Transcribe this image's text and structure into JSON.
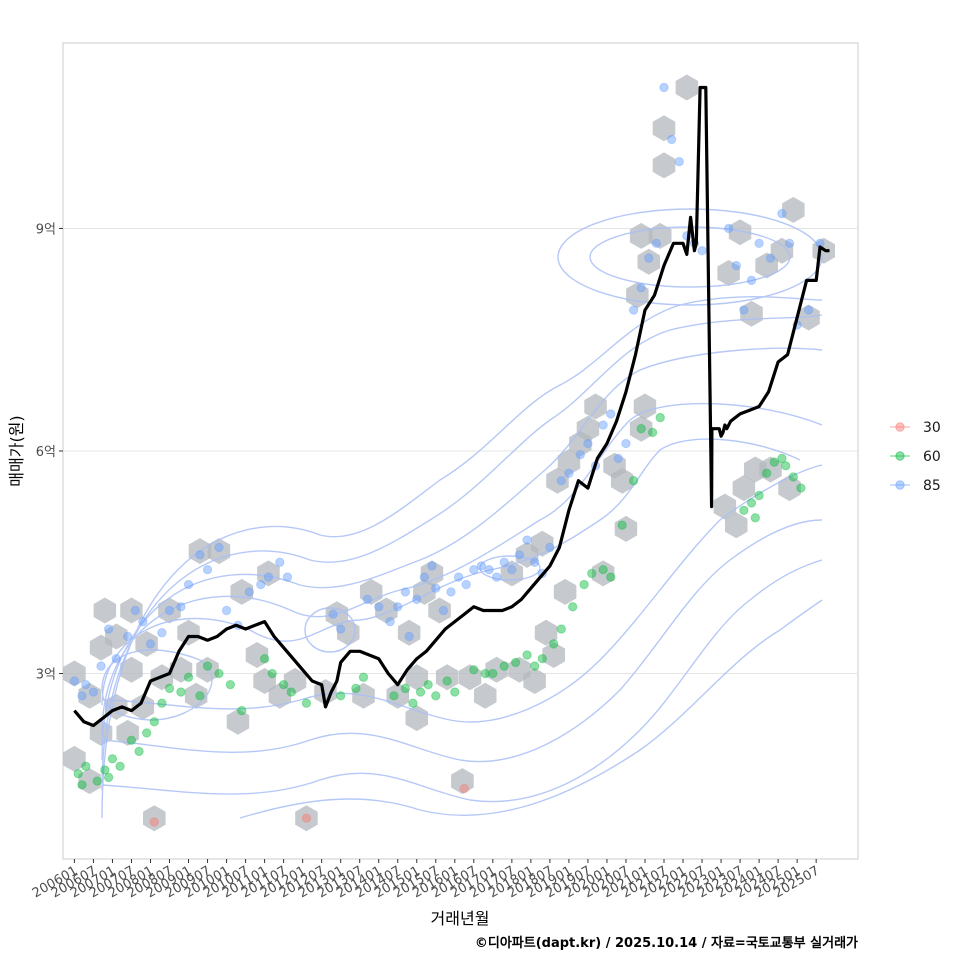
{
  "chart_data": {
    "type": "line",
    "xlabel": "거래년월",
    "ylabel": "매매가(원)",
    "caption": "©디아파트(dapt.kr) / 2025.10.14 / 자료=국토교통부 실거래가",
    "ylim": [
      0.5,
      11.5
    ],
    "y_ticks": [
      {
        "value": 3,
        "label": "3억"
      },
      {
        "value": 6,
        "label": "6억"
      },
      {
        "value": 9,
        "label": "9억"
      }
    ],
    "x_range": [
      2005.7,
      2026.6
    ],
    "x_tick_labels": [
      "200601",
      "200607",
      "200701",
      "200707",
      "200801",
      "200807",
      "200901",
      "200907",
      "201001",
      "201007",
      "201101",
      "201107",
      "201201",
      "201207",
      "201301",
      "201307",
      "201401",
      "201407",
      "201501",
      "201507",
      "201601",
      "201607",
      "201701",
      "201707",
      "201801",
      "201807",
      "201901",
      "201907",
      "202001",
      "202007",
      "202101",
      "202107",
      "202201",
      "202207",
      "202301",
      "202307",
      "202401",
      "202407",
      "202501",
      "202507"
    ],
    "legend": {
      "title": "",
      "position": "right",
      "entries": [
        {
          "name": "30",
          "color": "#F8766D"
        },
        {
          "name": "60",
          "color": "#00BA38"
        },
        {
          "name": "85",
          "color": "#619CFF"
        }
      ]
    },
    "trend_line": {
      "name": "moving average price",
      "x": [
        2006.0,
        2006.25,
        2006.5,
        2006.75,
        2007.0,
        2007.25,
        2007.5,
        2007.75,
        2008.0,
        2008.25,
        2008.5,
        2008.75,
        2009.0,
        2009.25,
        2009.5,
        2009.75,
        2010.0,
        2010.25,
        2010.5,
        2010.75,
        2011.0,
        2011.25,
        2011.5,
        2011.75,
        2012.0,
        2012.25,
        2012.5,
        2012.6,
        2012.75,
        2012.9,
        2013.0,
        2013.25,
        2013.5,
        2013.75,
        2014.0,
        2014.25,
        2014.5,
        2014.75,
        2015.0,
        2015.25,
        2015.5,
        2015.75,
        2016.0,
        2016.25,
        2016.5,
        2016.75,
        2017.0,
        2017.25,
        2017.5,
        2017.75,
        2018.0,
        2018.25,
        2018.5,
        2018.75,
        2019.0,
        2019.25,
        2019.5,
        2019.75,
        2020.0,
        2020.25,
        2020.5,
        2020.75,
        2021.0,
        2021.25,
        2021.5,
        2021.75,
        2022.0,
        2022.1,
        2022.2,
        2022.3,
        2022.35,
        2022.45,
        2022.55,
        2022.6,
        2022.75,
        2022.76,
        2022.95,
        2023.0,
        2023.05,
        2023.1,
        2023.15,
        2023.25,
        2023.5,
        2023.75,
        2024.0,
        2024.25,
        2024.5,
        2024.75,
        2025.0,
        2025.25,
        2025.5,
        2025.6,
        2025.75,
        2025.85
      ],
      "y": [
        2.5,
        2.35,
        2.3,
        2.4,
        2.5,
        2.55,
        2.5,
        2.6,
        2.9,
        2.95,
        3.0,
        3.3,
        3.5,
        3.5,
        3.45,
        3.5,
        3.6,
        3.65,
        3.6,
        3.65,
        3.7,
        3.5,
        3.35,
        3.2,
        3.05,
        2.9,
        2.85,
        2.55,
        2.75,
        2.9,
        3.15,
        3.3,
        3.3,
        3.25,
        3.2,
        3.0,
        2.85,
        3.05,
        3.2,
        3.3,
        3.45,
        3.6,
        3.7,
        3.8,
        3.9,
        3.85,
        3.85,
        3.85,
        3.9,
        4.0,
        4.15,
        4.3,
        4.45,
        4.7,
        5.2,
        5.6,
        5.5,
        5.9,
        6.1,
        6.4,
        6.8,
        7.3,
        7.9,
        8.1,
        8.5,
        8.8,
        8.8,
        8.65,
        9.15,
        8.7,
        8.8,
        10.9,
        10.9,
        10.9,
        5.25,
        6.3,
        6.3,
        6.2,
        6.25,
        6.35,
        6.3,
        6.4,
        6.5,
        6.55,
        6.6,
        6.8,
        7.2,
        7.3,
        7.8,
        8.3,
        8.3,
        8.75,
        8.7,
        8.7
      ]
    },
    "series": [
      {
        "name": "30",
        "color": "#F8766D",
        "points": [
          [
            2008.1,
            1.0
          ],
          [
            2012.1,
            1.05
          ],
          [
            2016.25,
            1.45
          ]
        ]
      },
      {
        "name": "60",
        "color": "#00BA38",
        "points": [
          [
            2006.1,
            1.65
          ],
          [
            2006.2,
            1.5
          ],
          [
            2006.3,
            1.75
          ],
          [
            2006.6,
            1.55
          ],
          [
            2006.8,
            1.7
          ],
          [
            2006.9,
            1.6
          ],
          [
            2007.0,
            1.85
          ],
          [
            2007.2,
            1.75
          ],
          [
            2007.5,
            2.1
          ],
          [
            2007.7,
            1.95
          ],
          [
            2007.9,
            2.2
          ],
          [
            2008.1,
            2.35
          ],
          [
            2008.3,
            2.6
          ],
          [
            2008.5,
            2.8
          ],
          [
            2008.8,
            2.75
          ],
          [
            2009.0,
            2.95
          ],
          [
            2009.3,
            2.7
          ],
          [
            2009.5,
            3.1
          ],
          [
            2009.8,
            3.0
          ],
          [
            2010.1,
            2.85
          ],
          [
            2010.4,
            2.5
          ],
          [
            2011.0,
            3.2
          ],
          [
            2011.2,
            3.0
          ],
          [
            2011.5,
            2.85
          ],
          [
            2011.7,
            2.75
          ],
          [
            2012.1,
            2.6
          ],
          [
            2013.0,
            2.7
          ],
          [
            2013.4,
            2.8
          ],
          [
            2013.6,
            2.95
          ],
          [
            2014.4,
            2.7
          ],
          [
            2014.7,
            2.8
          ],
          [
            2014.9,
            2.6
          ],
          [
            2015.1,
            2.75
          ],
          [
            2015.3,
            2.85
          ],
          [
            2015.5,
            2.7
          ],
          [
            2015.8,
            2.9
          ],
          [
            2016.0,
            2.75
          ],
          [
            2016.5,
            3.05
          ],
          [
            2016.8,
            3.0
          ],
          [
            2017.0,
            3.0
          ],
          [
            2017.3,
            3.1
          ],
          [
            2017.6,
            3.15
          ],
          [
            2017.9,
            3.25
          ],
          [
            2018.1,
            3.1
          ],
          [
            2018.3,
            3.2
          ],
          [
            2018.6,
            3.4
          ],
          [
            2018.8,
            3.6
          ],
          [
            2019.1,
            3.9
          ],
          [
            2019.4,
            4.2
          ],
          [
            2019.6,
            4.35
          ],
          [
            2019.9,
            4.4
          ],
          [
            2020.1,
            4.3
          ],
          [
            2020.4,
            5.0
          ],
          [
            2020.7,
            5.6
          ],
          [
            2020.9,
            6.3
          ],
          [
            2021.2,
            6.25
          ],
          [
            2021.4,
            6.45
          ],
          [
            2023.6,
            5.2
          ],
          [
            2023.8,
            5.3
          ],
          [
            2023.9,
            5.1
          ],
          [
            2024.0,
            5.4
          ],
          [
            2024.2,
            5.7
          ],
          [
            2024.4,
            5.85
          ],
          [
            2024.6,
            5.9
          ],
          [
            2024.7,
            5.8
          ],
          [
            2024.9,
            5.65
          ],
          [
            2025.1,
            5.5
          ]
        ]
      },
      {
        "name": "85",
        "color": "#619CFF",
        "points": [
          [
            2006.0,
            2.9
          ],
          [
            2006.2,
            2.7
          ],
          [
            2006.3,
            2.85
          ],
          [
            2006.5,
            2.75
          ],
          [
            2006.7,
            3.1
          ],
          [
            2006.9,
            3.6
          ],
          [
            2007.1,
            3.2
          ],
          [
            2007.4,
            3.5
          ],
          [
            2007.6,
            3.85
          ],
          [
            2007.8,
            3.7
          ],
          [
            2008.0,
            3.4
          ],
          [
            2008.3,
            3.55
          ],
          [
            2008.5,
            3.85
          ],
          [
            2008.8,
            3.9
          ],
          [
            2009.0,
            4.2
          ],
          [
            2009.3,
            4.6
          ],
          [
            2009.5,
            4.4
          ],
          [
            2009.8,
            4.7
          ],
          [
            2010.0,
            3.85
          ],
          [
            2010.3,
            3.65
          ],
          [
            2010.6,
            4.1
          ],
          [
            2010.9,
            4.2
          ],
          [
            2011.1,
            4.3
          ],
          [
            2011.4,
            4.5
          ],
          [
            2011.6,
            4.3
          ],
          [
            2012.8,
            3.8
          ],
          [
            2013.0,
            3.6
          ],
          [
            2013.7,
            4.0
          ],
          [
            2014.0,
            3.9
          ],
          [
            2014.3,
            3.7
          ],
          [
            2014.5,
            3.9
          ],
          [
            2014.7,
            4.1
          ],
          [
            2014.8,
            3.5
          ],
          [
            2015.0,
            4.0
          ],
          [
            2015.2,
            4.3
          ],
          [
            2015.4,
            4.45
          ],
          [
            2015.5,
            4.15
          ],
          [
            2015.7,
            3.85
          ],
          [
            2015.9,
            4.1
          ],
          [
            2016.1,
            4.3
          ],
          [
            2016.3,
            4.2
          ],
          [
            2016.5,
            4.4
          ],
          [
            2016.7,
            4.45
          ],
          [
            2016.9,
            4.4
          ],
          [
            2017.1,
            4.3
          ],
          [
            2017.3,
            4.5
          ],
          [
            2017.5,
            4.4
          ],
          [
            2017.7,
            4.6
          ],
          [
            2017.9,
            4.8
          ],
          [
            2018.1,
            4.5
          ],
          [
            2018.3,
            4.35
          ],
          [
            2018.5,
            4.7
          ],
          [
            2018.8,
            5.6
          ],
          [
            2019.0,
            5.7
          ],
          [
            2019.3,
            5.95
          ],
          [
            2019.5,
            6.1
          ],
          [
            2019.7,
            5.8
          ],
          [
            2019.9,
            6.35
          ],
          [
            2020.1,
            6.5
          ],
          [
            2020.3,
            5.9
          ],
          [
            2020.5,
            6.1
          ],
          [
            2020.7,
            7.9
          ],
          [
            2020.9,
            8.2
          ],
          [
            2021.1,
            8.6
          ],
          [
            2021.3,
            8.8
          ],
          [
            2021.5,
            10.9
          ],
          [
            2021.7,
            10.2
          ],
          [
            2021.9,
            9.9
          ],
          [
            2022.1,
            8.9
          ],
          [
            2022.3,
            8.8
          ],
          [
            2022.5,
            8.7
          ],
          [
            2023.2,
            9.0
          ],
          [
            2023.4,
            8.5
          ],
          [
            2023.6,
            7.9
          ],
          [
            2023.8,
            8.3
          ],
          [
            2024.0,
            8.8
          ],
          [
            2024.3,
            8.6
          ],
          [
            2024.6,
            9.2
          ],
          [
            2024.8,
            8.8
          ],
          [
            2025.0,
            7.7
          ],
          [
            2025.3,
            7.9
          ],
          [
            2025.6,
            8.8
          ]
        ]
      }
    ],
    "hex_cells": [
      [
        2006.0,
        3.0
      ],
      [
        2006.0,
        1.85
      ],
      [
        2006.4,
        1.55
      ],
      [
        2006.4,
        2.7
      ],
      [
        2006.7,
        2.2
      ],
      [
        2006.7,
        3.35
      ],
      [
        2006.8,
        3.85
      ],
      [
        2007.1,
        2.55
      ],
      [
        2007.1,
        3.5
      ],
      [
        2007.5,
        3.85
      ],
      [
        2007.4,
        2.2
      ],
      [
        2007.5,
        3.05
      ],
      [
        2007.8,
        2.55
      ],
      [
        2007.9,
        3.4
      ],
      [
        2008.1,
        1.05
      ],
      [
        2008.3,
        2.95
      ],
      [
        2008.5,
        3.85
      ],
      [
        2008.8,
        3.05
      ],
      [
        2009.0,
        3.55
      ],
      [
        2009.2,
        2.7
      ],
      [
        2009.3,
        4.65
      ],
      [
        2009.5,
        3.05
      ],
      [
        2009.8,
        4.65
      ],
      [
        2010.3,
        2.35
      ],
      [
        2010.4,
        4.1
      ],
      [
        2010.8,
        3.25
      ],
      [
        2011.0,
        2.9
      ],
      [
        2011.1,
        4.35
      ],
      [
        2011.4,
        2.7
      ],
      [
        2011.8,
        2.9
      ],
      [
        2012.1,
        1.05
      ],
      [
        2012.6,
        2.75
      ],
      [
        2012.9,
        3.8
      ],
      [
        2013.2,
        3.55
      ],
      [
        2013.6,
        2.7
      ],
      [
        2013.8,
        4.1
      ],
      [
        2014.2,
        3.85
      ],
      [
        2014.5,
        2.7
      ],
      [
        2014.8,
        3.55
      ],
      [
        2015.0,
        2.4
      ],
      [
        2015.0,
        2.95
      ],
      [
        2015.2,
        4.1
      ],
      [
        2015.4,
        4.35
      ],
      [
        2015.6,
        3.85
      ],
      [
        2015.8,
        2.95
      ],
      [
        2016.2,
        1.55
      ],
      [
        2016.4,
        2.95
      ],
      [
        2016.8,
        2.7
      ],
      [
        2017.1,
        3.05
      ],
      [
        2017.5,
        4.35
      ],
      [
        2017.7,
        3.05
      ],
      [
        2017.9,
        4.6
      ],
      [
        2018.1,
        2.9
      ],
      [
        2018.3,
        4.75
      ],
      [
        2018.4,
        3.55
      ],
      [
        2018.6,
        3.25
      ],
      [
        2018.9,
        4.1
      ],
      [
        2018.7,
        5.6
      ],
      [
        2019.0,
        5.85
      ],
      [
        2019.3,
        6.1
      ],
      [
        2019.5,
        6.3
      ],
      [
        2019.7,
        6.6
      ],
      [
        2019.9,
        4.35
      ],
      [
        2020.2,
        5.8
      ],
      [
        2020.4,
        5.6
      ],
      [
        2020.5,
        4.95
      ],
      [
        2020.9,
        6.3
      ],
      [
        2021.0,
        6.6
      ],
      [
        2020.8,
        8.1
      ],
      [
        2020.9,
        8.9
      ],
      [
        2021.1,
        8.55
      ],
      [
        2021.4,
        8.9
      ],
      [
        2021.5,
        10.35
      ],
      [
        2021.5,
        9.85
      ],
      [
        2022.1,
        10.9
      ],
      [
        2023.1,
        5.25
      ],
      [
        2023.4,
        5.0
      ],
      [
        2023.6,
        5.5
      ],
      [
        2023.9,
        5.75
      ],
      [
        2024.3,
        5.75
      ],
      [
        2024.8,
        5.5
      ],
      [
        2023.2,
        8.4
      ],
      [
        2023.5,
        8.95
      ],
      [
        2023.8,
        7.85
      ],
      [
        2024.2,
        8.5
      ],
      [
        2024.6,
        8.7
      ],
      [
        2024.9,
        9.25
      ],
      [
        2025.3,
        7.8
      ],
      [
        2025.7,
        8.7
      ]
    ]
  }
}
